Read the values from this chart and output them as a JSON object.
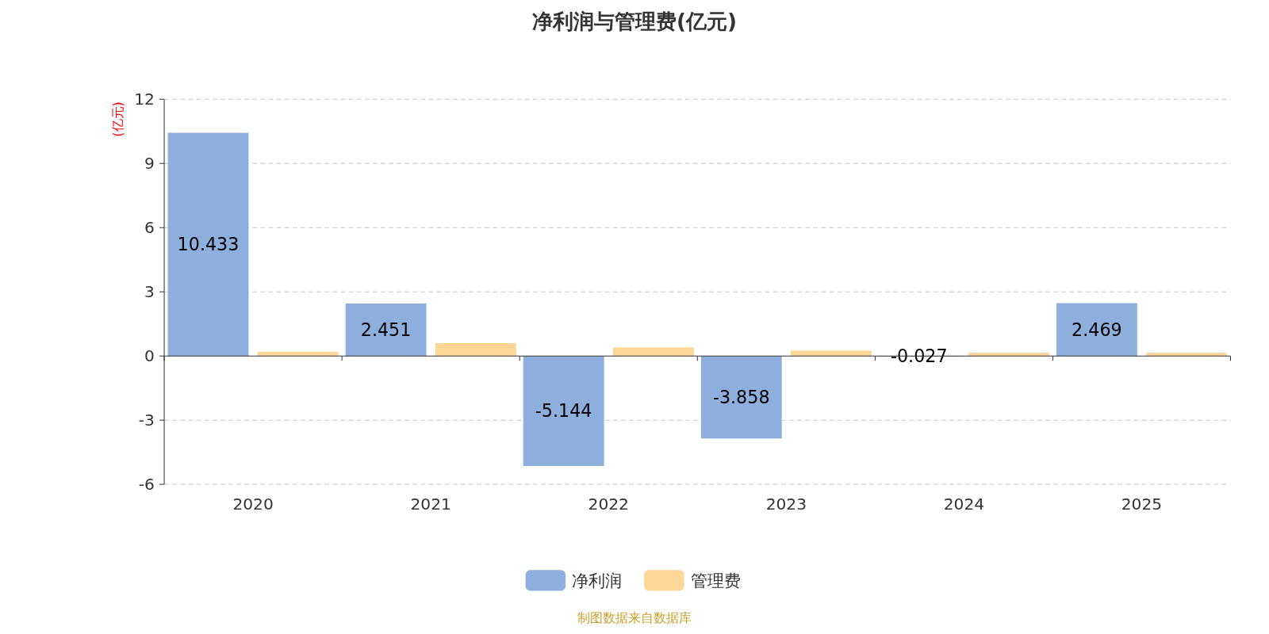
{
  "chart_data": {
    "type": "bar",
    "title": "净利润与管理费(亿元)",
    "ylabel": "(亿元)",
    "categories": [
      "2020",
      "2021",
      "2022",
      "2023",
      "2024",
      "2025"
    ],
    "series": [
      {
        "name": "净利润",
        "color": "#8eaedb",
        "values": [
          10.433,
          2.451,
          -5.144,
          -3.858,
          -0.027,
          2.469
        ],
        "value_labels": [
          "10.433",
          "2.451",
          "-5.144",
          "-3.858",
          "-0.027",
          "2.469"
        ]
      },
      {
        "name": "管理费",
        "color": "#fdd797",
        "values": [
          0.2,
          0.6,
          0.4,
          0.25,
          0.15,
          0.15
        ]
      }
    ],
    "ylim": [
      -6,
      12
    ],
    "yticks": [
      -6,
      -3,
      0,
      3,
      6,
      9,
      12
    ],
    "grid": "y",
    "legend": "bottom",
    "annotations": [
      "制图数据来自数据库"
    ]
  }
}
